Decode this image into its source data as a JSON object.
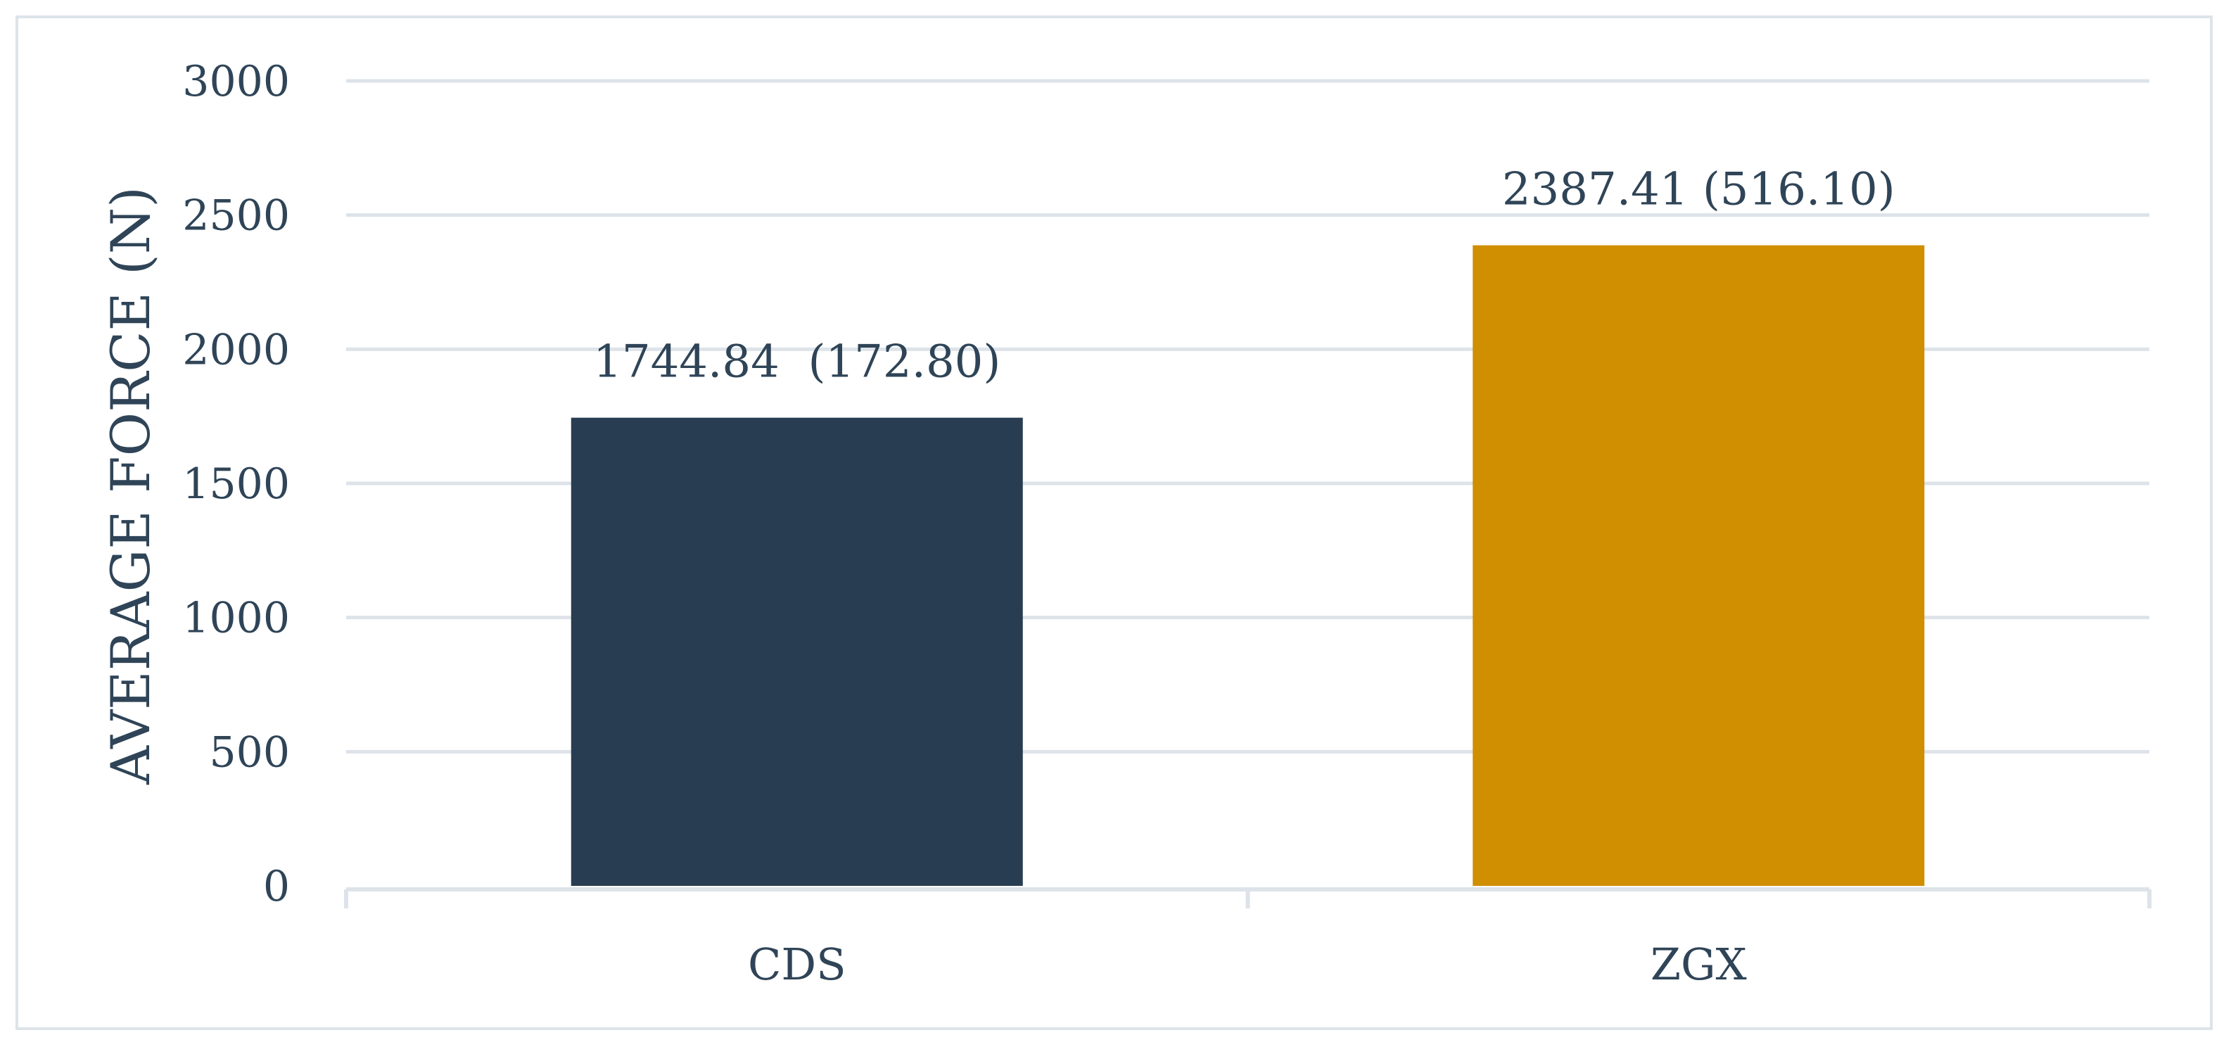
{
  "chart_data": {
    "type": "bar",
    "categories": [
      "CDS",
      "ZGX"
    ],
    "values": [
      1744.84,
      2387.41
    ],
    "data_labels": [
      "1744.84  (172.80)",
      "2387.41 (516.10)"
    ],
    "bar_colors": [
      "#293d52",
      "#cf8f00"
    ],
    "title": "",
    "xlabel": "",
    "ylabel": "AVERAGE FORCE (N)",
    "ylim": [
      0,
      3000
    ],
    "yticks": [
      0,
      500,
      1000,
      1500,
      2000,
      2500,
      3000
    ],
    "grid": true,
    "legend": "none",
    "gridline_color": "#dde3e9",
    "text_color": "#2f4457"
  }
}
